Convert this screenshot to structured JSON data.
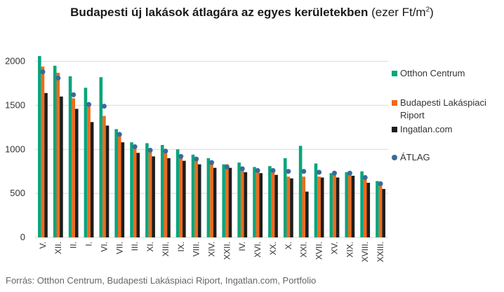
{
  "title": {
    "main": "Budapesti új lakások átlagára az egyes kerületekben",
    "unit_prefix": "(ezer Ft/m",
    "unit_sup": "2",
    "unit_suffix": ")"
  },
  "source": "Forrás: Otthon Centrum, Budapesti Lakáspiaci Riport, Ingatlan.com, Portfolio",
  "colors": {
    "otthon": "#0aa57c",
    "blr": "#ee6b1c",
    "ingatlan": "#1e1e1e",
    "atlag": "#3a6a9a",
    "grid": "#d9d9d9"
  },
  "chart_data": {
    "type": "bar",
    "categories": [
      "V.",
      "XII.",
      "II.",
      "I.",
      "VI.",
      "VII.",
      "III.",
      "XI.",
      "XIII.",
      "IX.",
      "VIII.",
      "XIV.",
      "XXII.",
      "IV.",
      "XVI.",
      "XX.",
      "X.",
      "XXI.",
      "XVII.",
      "XV.",
      "XIX.",
      "XVIII.",
      "XXIII."
    ],
    "series": [
      {
        "name": "Otthon Centrum",
        "type": "bar",
        "values": [
          2060,
          1950,
          1830,
          1700,
          1820,
          1230,
          1080,
          1070,
          1050,
          1000,
          940,
          900,
          830,
          850,
          800,
          810,
          900,
          1040,
          840,
          730,
          740,
          750,
          640
        ]
      },
      {
        "name": "Budapesti Lakáspiaci Riport",
        "lines": [
          "Budapesti Lakáspiaci",
          "Riport"
        ],
        "type": "bar",
        "values": [
          1940,
          1870,
          1580,
          1490,
          1380,
          1180,
          1030,
          990,
          1000,
          940,
          910,
          860,
          830,
          800,
          760,
          780,
          690,
          690,
          690,
          740,
          740,
          660,
          610
        ]
      },
      {
        "name": "Ingatlan.com",
        "type": "bar",
        "values": [
          1640,
          1600,
          1460,
          1310,
          1270,
          1080,
          960,
          920,
          900,
          870,
          830,
          790,
          790,
          740,
          730,
          710,
          670,
          520,
          680,
          680,
          700,
          620,
          550
        ]
      },
      {
        "name": "ÁTLAG",
        "type": "dot",
        "values": [
          1880,
          1810,
          1620,
          1510,
          1490,
          1170,
          1030,
          990,
          980,
          920,
          890,
          850,
          800,
          780,
          760,
          760,
          750,
          750,
          740,
          730,
          730,
          680,
          610
        ]
      }
    ],
    "y_ticks": [
      0,
      500,
      1000,
      1500,
      2000
    ],
    "ylim": [
      0,
      2100
    ],
    "grid": true,
    "legend_position": "right"
  }
}
